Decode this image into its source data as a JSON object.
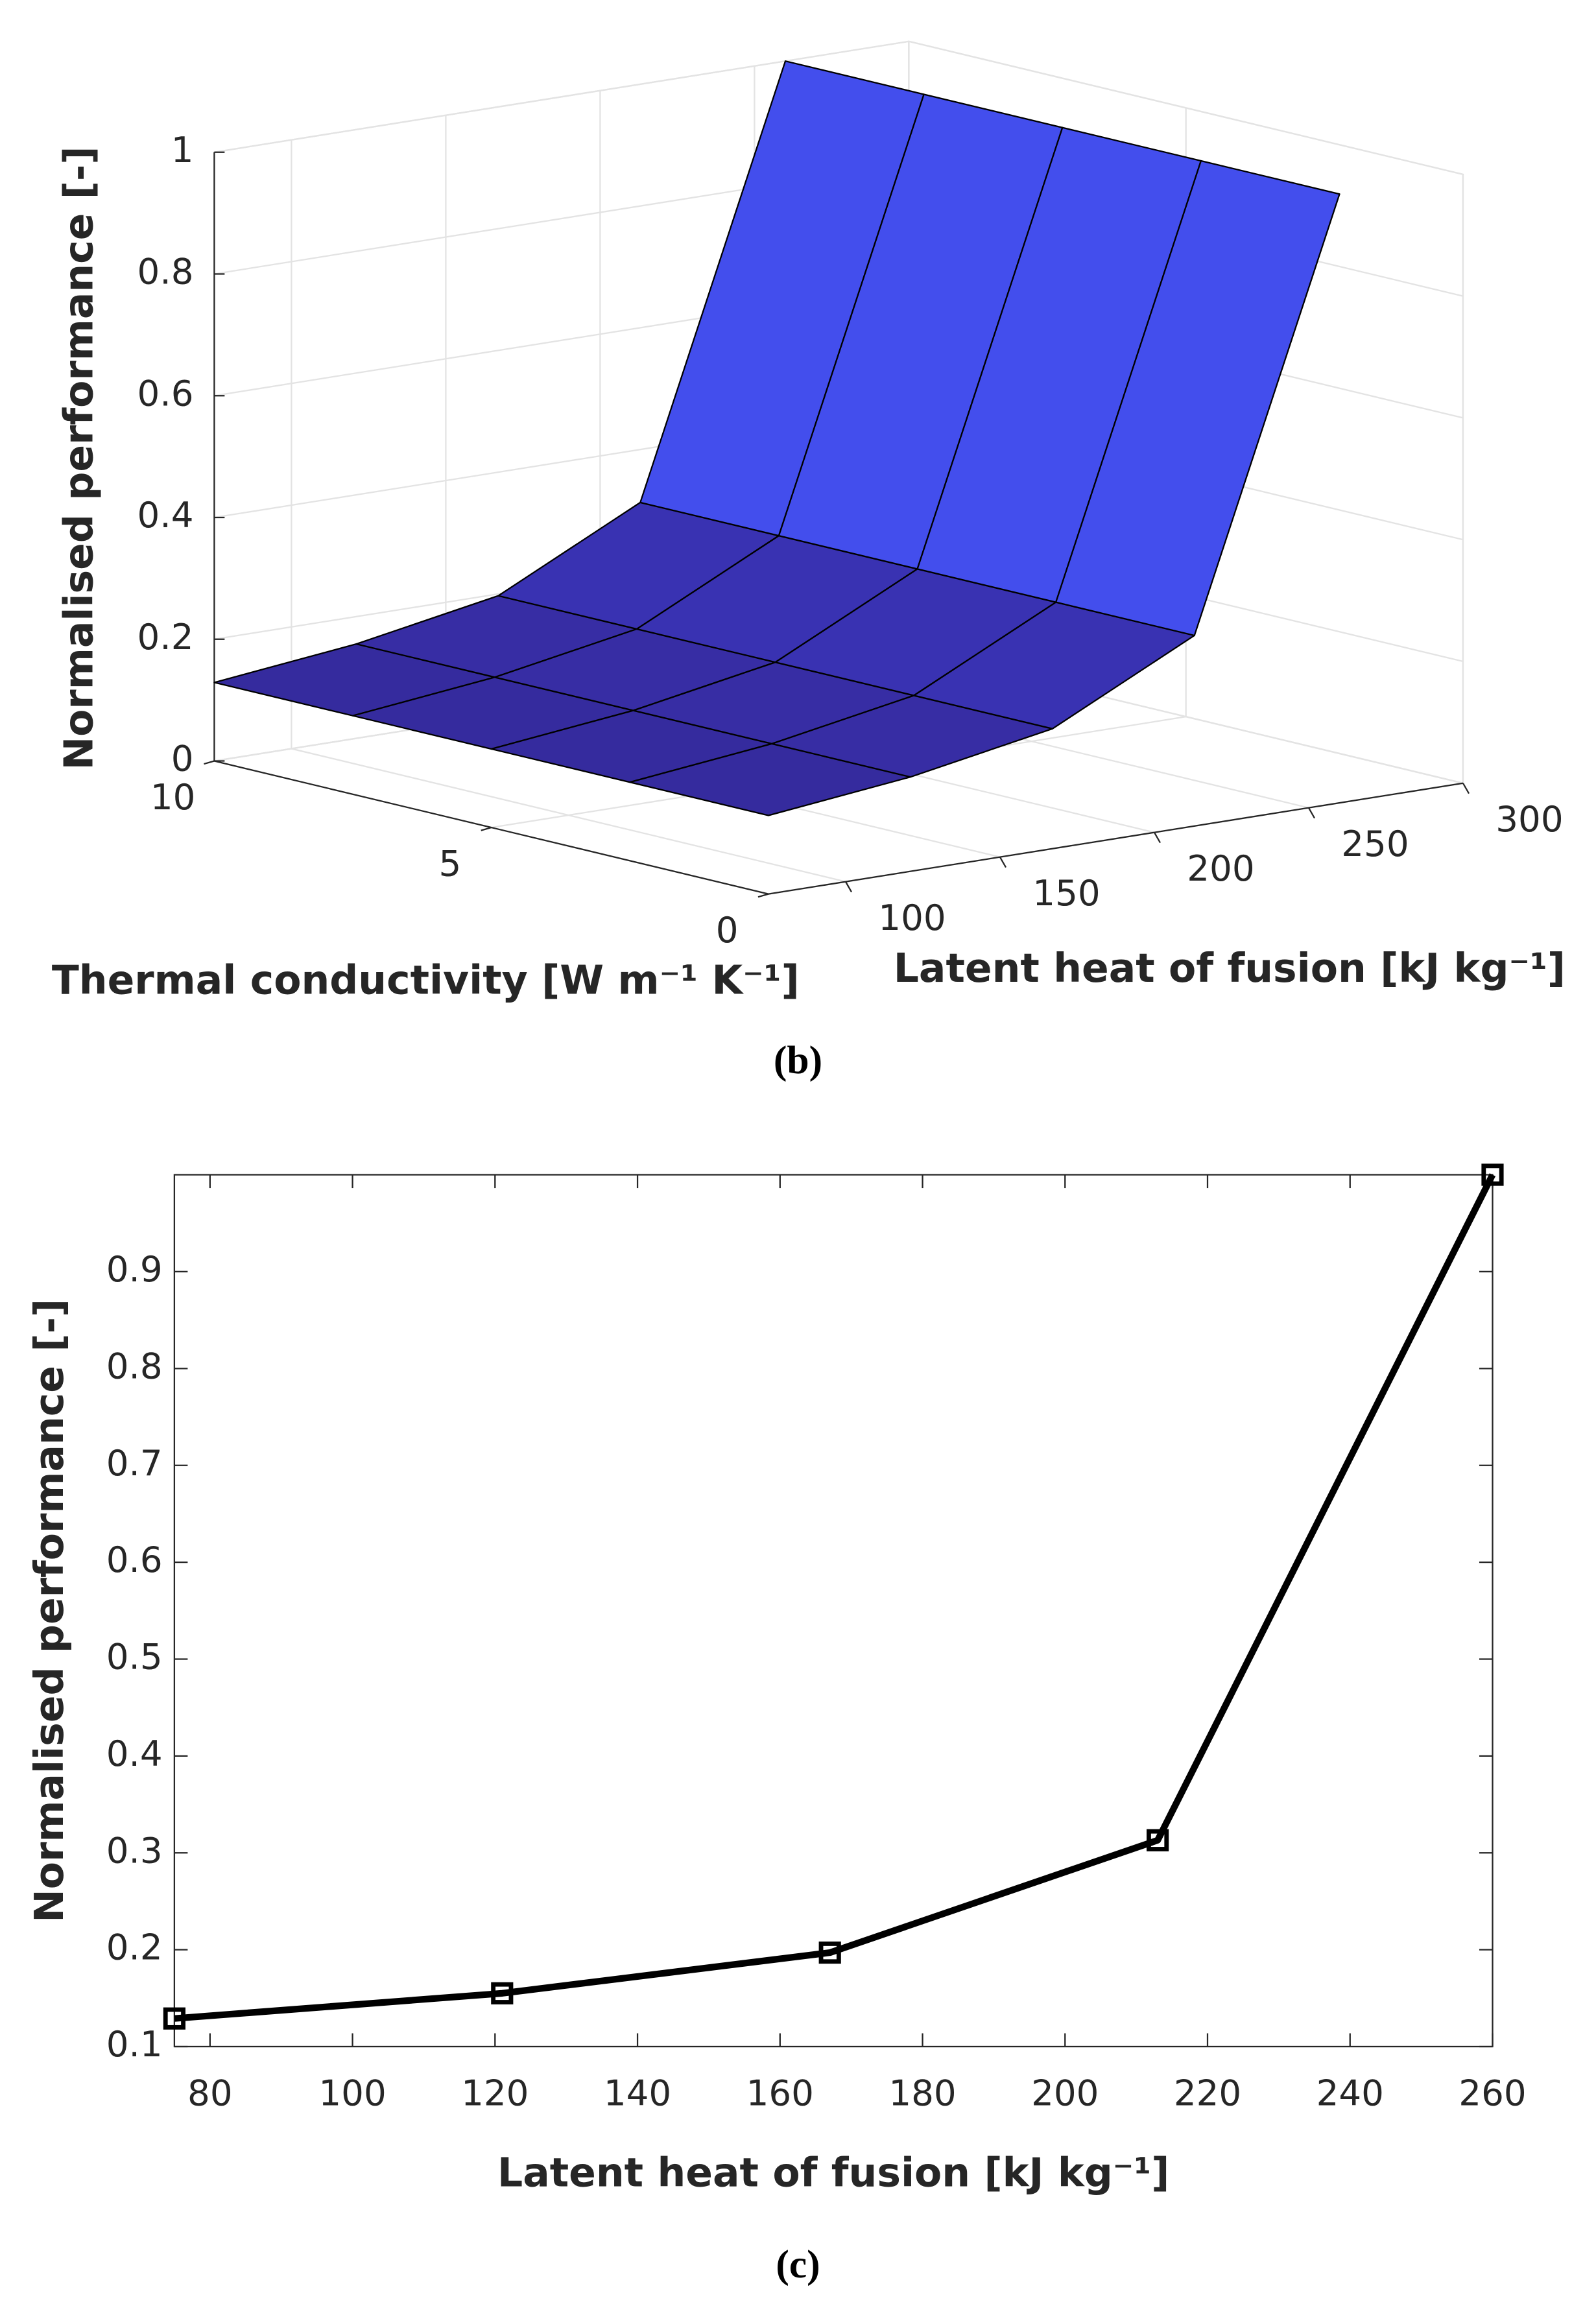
{
  "chart_data": [
    {
      "type": "surface",
      "x": [
        75,
        121,
        167,
        213,
        260
      ],
      "y": [
        0,
        2.5,
        5,
        7.5,
        10
      ],
      "z": [
        [
          0.129,
          0.155,
          0.197,
          0.313,
          1.0
        ],
        [
          0.129,
          0.155,
          0.197,
          0.313,
          1.0
        ],
        [
          0.129,
          0.155,
          0.197,
          0.313,
          1.0
        ],
        [
          0.129,
          0.155,
          0.197,
          0.313,
          1.0
        ],
        [
          0.129,
          0.155,
          0.197,
          0.313,
          1.0
        ]
      ],
      "xlabel": "Latent heat of fusion [kJ kg⁻¹]",
      "ylabel": "Thermal conductivity [W m⁻¹ K⁻¹]",
      "zlabel": "Normalised performance [-]",
      "xlim": [
        75,
        300
      ],
      "xticks": [
        100,
        150,
        200,
        250,
        300
      ],
      "ylim": [
        0,
        10
      ],
      "yticks": [
        0,
        5,
        10
      ],
      "zlim": [
        0,
        1
      ],
      "zticks": [
        0,
        0.2,
        0.4,
        0.6,
        0.8,
        1
      ],
      "grid": true,
      "colormap": [
        "#352a9c",
        "#4444e8",
        "#3f72ff"
      ],
      "caption": "(b)"
    },
    {
      "type": "line",
      "x": [
        75,
        121,
        167,
        213,
        260
      ],
      "values": [
        0.129,
        0.155,
        0.197,
        0.313,
        1.0
      ],
      "color": "#000000",
      "xlabel": "Latent heat of fusion [kJ kg⁻¹]",
      "ylabel": "Normalised performance [-]",
      "xlim": [
        75,
        260
      ],
      "xticks": [
        80,
        100,
        120,
        140,
        160,
        180,
        200,
        220,
        240,
        260
      ],
      "ylim": [
        0.1,
        1
      ],
      "yticks": [
        0.1,
        0.2,
        0.3,
        0.4,
        0.5,
        0.6,
        0.7,
        0.8,
        0.9
      ],
      "grid": false,
      "caption": "(c)"
    }
  ]
}
